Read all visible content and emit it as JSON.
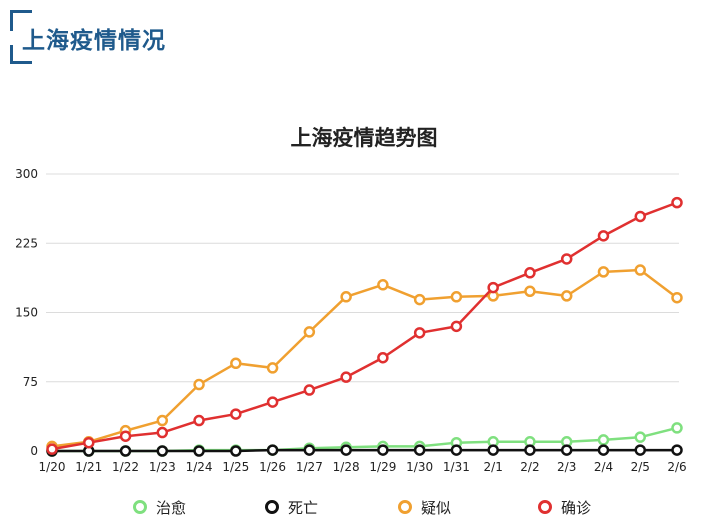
{
  "header": {
    "title": "上海疫情情况"
  },
  "chart_data": {
    "type": "line",
    "title": "上海疫情趋势图",
    "xlabel": "",
    "ylabel": "",
    "categories": [
      "1/20",
      "1/21",
      "1/22",
      "1/23",
      "1/24",
      "1/25",
      "1/26",
      "1/27",
      "1/28",
      "1/29",
      "1/30",
      "1/31",
      "2/1",
      "2/2",
      "2/3",
      "2/4",
      "2/5",
      "2/6"
    ],
    "yticks": [
      0,
      75,
      150,
      225,
      300
    ],
    "ylim": [
      0,
      300
    ],
    "grid": true,
    "legend_position": "bottom",
    "series": [
      {
        "name": "治愈",
        "color": "#7fe07f",
        "values": [
          0,
          0,
          0,
          0,
          1,
          1,
          1,
          3,
          4,
          5,
          5,
          9,
          10,
          10,
          10,
          12,
          15,
          25
        ]
      },
      {
        "name": "死亡",
        "color": "#111111",
        "values": [
          0,
          0,
          0,
          0,
          0,
          0,
          1,
          1,
          1,
          1,
          1,
          1,
          1,
          1,
          1,
          1,
          1,
          1
        ]
      },
      {
        "name": "疑似",
        "color": "#f0a030",
        "values": [
          5,
          10,
          22,
          33,
          72,
          95,
          90,
          129,
          167,
          180,
          164,
          167,
          168,
          173,
          168,
          194,
          196,
          166
        ]
      },
      {
        "name": "确诊",
        "color": "#e03030",
        "values": [
          2,
          9,
          16,
          20,
          33,
          40,
          53,
          66,
          80,
          101,
          128,
          135,
          177,
          193,
          208,
          233,
          254,
          269
        ]
      }
    ]
  }
}
